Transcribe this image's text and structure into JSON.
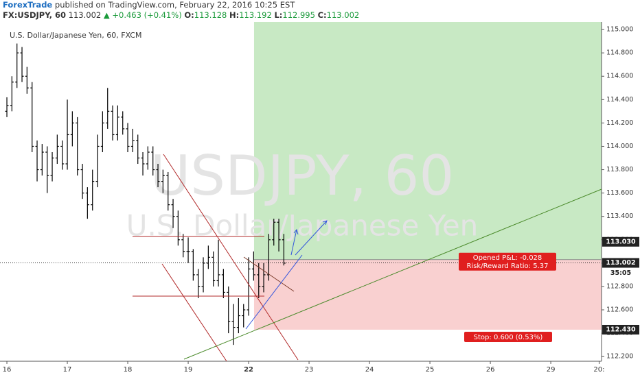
{
  "header": {
    "author": "ForexTrade",
    "published": "published on TradingView.com, February 22, 2016 10:25 EST",
    "symbol": "FX:USDJPY, 60",
    "last": "113.002",
    "change": "▲ +0.463 (+0.41%)",
    "o_label": "O:",
    "open": "113.128",
    "h_label": "H:",
    "high": "113.192",
    "l_label": "L:",
    "low": "112.995",
    "c_label": "C:",
    "close": "113.002"
  },
  "chart_data": {
    "type": "ohlc",
    "title": "U.S. Dollar/Japanese Yen, 60, FXCM",
    "watermark": "USDJPY, 60",
    "watermark_subtitle": "U.S. Dollar/Japanese Yen",
    "color": "#000000",
    "x": [
      0,
      0.083,
      0.167,
      0.25,
      0.333,
      0.417,
      0.5,
      0.583,
      0.667,
      0.75,
      0.833,
      0.917,
      1,
      1.083,
      1.167,
      1.25,
      1.333,
      1.417,
      1.5,
      1.583,
      1.667,
      1.75,
      1.833,
      1.917,
      2,
      2.083,
      2.167,
      2.25,
      2.333,
      2.417,
      2.5,
      2.583,
      2.667,
      2.75,
      2.833,
      2.917,
      3,
      3.083,
      3.167,
      3.25,
      3.333,
      3.417,
      3.5,
      3.583,
      3.667,
      3.75,
      3.833,
      3.917,
      4,
      4.083,
      4.167,
      4.25,
      4.333,
      4.417,
      4.5,
      4.583
    ],
    "ohlc": [
      [
        114.3,
        114.42,
        114.25,
        114.35
      ],
      [
        114.35,
        114.6,
        114.3,
        114.55
      ],
      [
        114.55,
        114.88,
        114.5,
        114.8
      ],
      [
        114.8,
        114.85,
        114.55,
        114.6
      ],
      [
        114.6,
        114.68,
        114.45,
        114.5
      ],
      [
        114.5,
        114.55,
        113.95,
        114.0
      ],
      [
        114.0,
        114.05,
        113.7,
        113.8
      ],
      [
        113.8,
        114.02,
        113.75,
        113.95
      ],
      [
        113.95,
        114.0,
        113.6,
        113.75
      ],
      [
        113.75,
        113.95,
        113.7,
        113.9
      ],
      [
        113.9,
        114.1,
        113.85,
        114.0
      ],
      [
        114.0,
        114.05,
        113.8,
        113.85
      ],
      [
        113.85,
        114.4,
        113.8,
        114.1
      ],
      [
        114.1,
        114.3,
        114.0,
        114.2
      ],
      [
        114.2,
        114.25,
        113.75,
        113.8
      ],
      [
        113.8,
        113.85,
        113.55,
        113.6
      ],
      [
        113.6,
        113.65,
        113.38,
        113.5
      ],
      [
        113.5,
        113.8,
        113.45,
        113.7
      ],
      [
        113.7,
        114.1,
        113.65,
        114.0
      ],
      [
        114.0,
        114.3,
        113.95,
        114.2
      ],
      [
        114.2,
        114.5,
        114.15,
        114.3
      ],
      [
        114.3,
        114.35,
        114.05,
        114.1
      ],
      [
        114.1,
        114.35,
        114.05,
        114.25
      ],
      [
        114.25,
        114.3,
        114.1,
        114.15
      ],
      [
        114.15,
        114.2,
        113.95,
        114.0
      ],
      [
        114.0,
        114.15,
        113.95,
        114.05
      ],
      [
        114.05,
        114.1,
        113.85,
        113.9
      ],
      [
        113.9,
        113.95,
        113.75,
        113.85
      ],
      [
        113.85,
        114.0,
        113.8,
        113.95
      ],
      [
        113.95,
        114.0,
        113.75,
        113.8
      ],
      [
        113.8,
        113.85,
        113.65,
        113.7
      ],
      [
        113.7,
        113.8,
        113.6,
        113.75
      ],
      [
        113.75,
        113.78,
        113.45,
        113.5
      ],
      [
        113.5,
        113.55,
        113.3,
        113.4
      ],
      [
        113.4,
        113.45,
        113.15,
        113.2
      ],
      [
        113.2,
        113.25,
        113.05,
        113.1
      ],
      [
        113.1,
        113.22,
        113.0,
        113.1
      ],
      [
        113.1,
        113.12,
        112.85,
        112.9
      ],
      [
        112.9,
        112.95,
        112.7,
        112.8
      ],
      [
        112.8,
        113.05,
        112.75,
        113.0
      ],
      [
        113.0,
        113.15,
        112.95,
        113.05
      ],
      [
        113.05,
        113.1,
        112.8,
        112.85
      ],
      [
        112.85,
        113.2,
        112.8,
        112.9
      ],
      [
        112.9,
        112.95,
        112.7,
        112.75
      ],
      [
        112.75,
        112.8,
        112.4,
        112.5
      ],
      [
        112.5,
        112.65,
        112.3,
        112.45
      ],
      [
        112.45,
        112.7,
        112.4,
        112.55
      ],
      [
        112.55,
        112.65,
        112.45,
        112.6
      ],
      [
        112.6,
        113.05,
        112.55,
        112.95
      ],
      [
        112.95,
        113.1,
        112.85,
        112.9
      ],
      [
        112.9,
        113.0,
        112.7,
        112.8
      ],
      [
        112.8,
        113.0,
        112.75,
        112.9
      ],
      [
        112.9,
        113.25,
        112.85,
        113.2
      ],
      [
        113.2,
        113.38,
        113.15,
        113.35
      ],
      [
        113.35,
        113.38,
        113.1,
        113.2
      ],
      [
        113.2,
        113.25,
        112.98,
        113.0
      ]
    ],
    "xlim": [
      -0.114,
      9.84
    ],
    "xticks": [
      {
        "value": 0,
        "label": "16"
      },
      {
        "value": 1,
        "label": "17"
      },
      {
        "value": 2,
        "label": "18"
      },
      {
        "value": 3,
        "label": "19"
      },
      {
        "value": 4,
        "label": "22"
      },
      {
        "value": 5,
        "label": "23"
      },
      {
        "value": 6,
        "label": "24"
      },
      {
        "value": 7,
        "label": "25"
      },
      {
        "value": 8,
        "label": "26"
      },
      {
        "value": 9,
        "label": "29"
      },
      {
        "value": 9.8,
        "label": "20:"
      }
    ],
    "ylim": [
      112.16,
      115.065
    ],
    "yticks": [
      {
        "value": 112.2,
        "label": "112.200"
      },
      {
        "value": 112.4,
        "label": "112.400"
      },
      {
        "value": 112.6,
        "label": "112.600"
      },
      {
        "value": 112.8,
        "label": "112.800"
      },
      {
        "value": 113,
        "label": "113.000"
      },
      {
        "value": 113.2,
        "label": "113.200"
      },
      {
        "value": 113.4,
        "label": "113.400"
      },
      {
        "value": 113.6,
        "label": "113.600"
      },
      {
        "value": 113.8,
        "label": "113.800"
      },
      {
        "value": 114,
        "label": "114.000"
      },
      {
        "value": 114.2,
        "label": "114.200"
      },
      {
        "value": 114.4,
        "label": "114.400"
      },
      {
        "value": 114.6,
        "label": "114.600"
      },
      {
        "value": 114.8,
        "label": "114.800"
      },
      {
        "value": 115,
        "label": "115.000"
      }
    ],
    "current_price": 113.002,
    "countdown": "35:05",
    "position": {
      "start_x": 4.09,
      "entry": {
        "value": 113.03,
        "label": "113.030"
      },
      "stop": {
        "value": 112.43,
        "label": "112.430"
      },
      "target_color": "#c8e9c4",
      "stop_color": "#f9d0d0",
      "pnl": "Opened P&L: -0.028",
      "ratio": "Risk/Reward Ratio: 5.37",
      "stop_label": "Stop: 0.600 (0.53%)"
    }
  }
}
